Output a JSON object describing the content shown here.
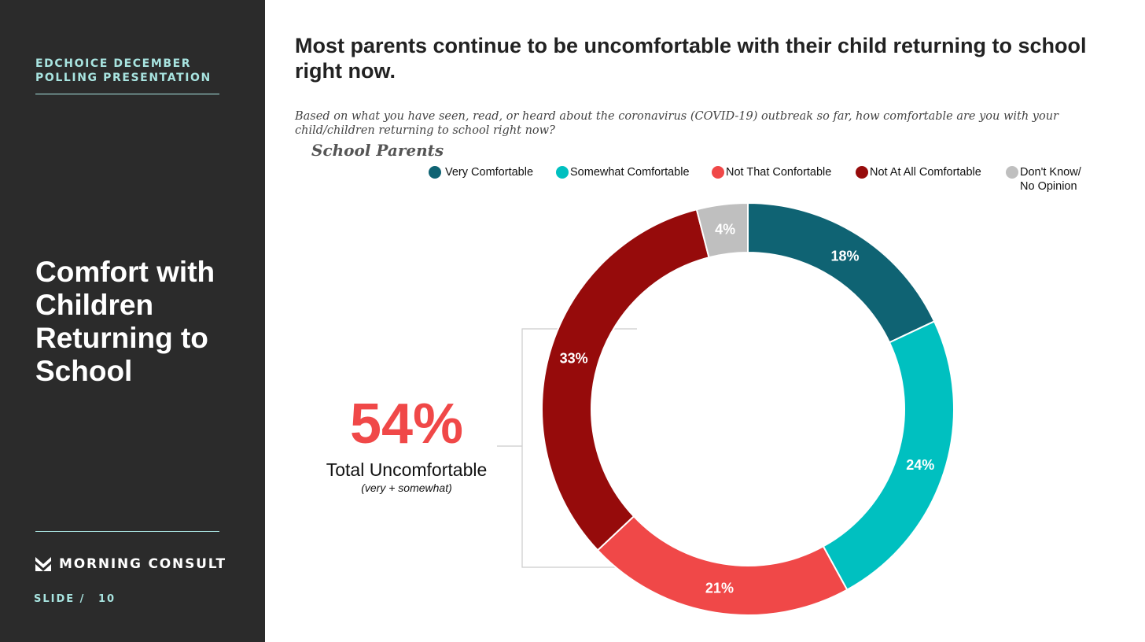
{
  "sidebar": {
    "kicker_line1": "EDCHOICE DECEMBER",
    "kicker_line2": "POLLING PRESENTATION",
    "section_title": "Comfort with Children Returning to School",
    "logo_text": "MORNING CONSULT",
    "slide_label": "SLIDE /",
    "slide_number": "10",
    "accent_color": "#a8e4e0"
  },
  "slide": {
    "headline": "Most parents continue to be uncomfortable with their child returning to school right now.",
    "question": "Based on what you have seen, read, or heard about the coronavirus (COVID-19) outbreak so far, how comfortable are you with your child/children returning to school right now?",
    "group_label": "School Parents"
  },
  "callout": {
    "value": "54%",
    "label": "Total Uncomfortable",
    "sublabel": "(very + somewhat)",
    "color": "#f04848"
  },
  "chart_data": {
    "type": "pie",
    "donut": true,
    "title": "School Parents",
    "slices": [
      {
        "label": "Very Comfortable",
        "value": 18,
        "display": "18%",
        "color": "#0f6373"
      },
      {
        "label": "Somewhat Comfortable",
        "value": 24,
        "display": "24%",
        "color": "#00c0c0"
      },
      {
        "label": "Not That Confortable",
        "value": 21,
        "display": "21%",
        "color": "#f04848"
      },
      {
        "label": "Not At All Comfortable",
        "value": 33,
        "display": "33%",
        "color": "#960b0b"
      },
      {
        "label": "Don't Know/ No Opinion",
        "value": 4,
        "display": "4%",
        "color": "#bfbfbf"
      }
    ],
    "legend_placement": "top"
  }
}
